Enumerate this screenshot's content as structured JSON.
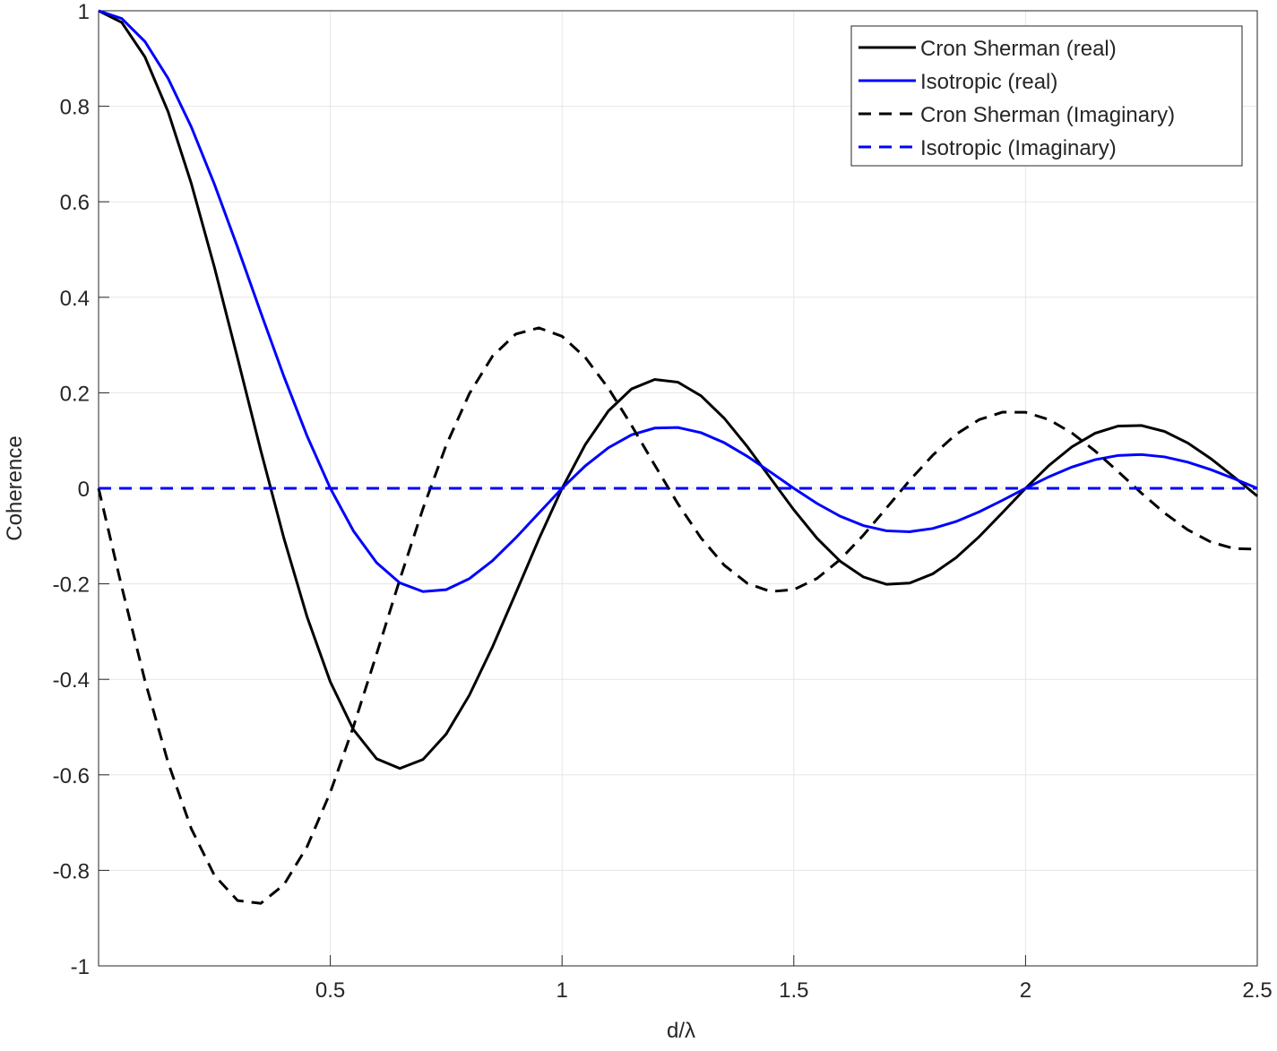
{
  "chart_data": {
    "type": "line",
    "x": [
      0,
      0.05,
      0.1,
      0.15,
      0.2,
      0.25,
      0.3,
      0.35,
      0.4,
      0.45,
      0.5,
      0.55,
      0.6,
      0.65,
      0.7,
      0.75,
      0.8,
      0.85,
      0.9,
      0.95,
      1,
      1.05,
      1.1,
      1.15,
      1.2,
      1.25,
      1.3,
      1.35,
      1.4,
      1.45,
      1.5,
      1.55,
      1.6,
      1.65,
      1.7,
      1.75,
      1.8,
      1.85,
      1.9,
      1.95,
      2,
      2.05,
      2.1,
      2.15,
      2.2,
      2.25,
      2.3,
      2.35,
      2.4,
      2.45,
      2.5
    ],
    "series": [
      {
        "name": "Cron Sherman (real)",
        "color": "#000000",
        "dash": false,
        "values": [
          1,
          0.9755,
          0.9034,
          0.7887,
          0.6385,
          0.4627,
          0.2723,
          0.0791,
          -0.105,
          -0.2695,
          -0.4053,
          -0.5056,
          -0.5664,
          -0.5866,
          -0.5678,
          -0.5145,
          -0.4331,
          -0.3319,
          -0.2198,
          -0.1063,
          0,
          0.0914,
          0.1621,
          0.2081,
          0.228,
          0.2222,
          0.1936,
          0.1466,
          0.0869,
          0.0208,
          -0.045,
          -0.1046,
          -0.1527,
          -0.1856,
          -0.201,
          -0.1984,
          -0.179,
          -0.1453,
          -0.1012,
          -0.0511,
          0,
          0.0474,
          0.0869,
          0.1153,
          0.1304,
          0.1315,
          0.1191,
          0.095,
          0.062,
          0.0237,
          -0.0162
        ]
      },
      {
        "name": "Isotropic (real)",
        "color": "#0000ff",
        "dash": false,
        "values": [
          1,
          0.9836,
          0.9355,
          0.8584,
          0.7568,
          0.6366,
          0.5046,
          0.3679,
          0.2339,
          0.1093,
          0,
          -0.0894,
          -0.1559,
          -0.1981,
          -0.2162,
          -0.2122,
          -0.1892,
          -0.1515,
          -0.1039,
          -0.0518,
          0,
          0.0468,
          0.085,
          0.112,
          0.1261,
          0.1273,
          0.1164,
          0.0954,
          0.0668,
          0.0339,
          0,
          -0.0317,
          -0.0585,
          -0.078,
          -0.089,
          -0.0909,
          -0.0841,
          -0.0696,
          -0.0492,
          -0.0252,
          0,
          0.024,
          0.0445,
          0.0599,
          0.0688,
          0.0707,
          0.0658,
          0.0548,
          0.039,
          0.0201,
          0
        ]
      },
      {
        "name": "Cron Sherman (Imaginary)",
        "color": "#000000",
        "dash": true,
        "values": [
          0,
          -0.2063,
          -0.4026,
          -0.5743,
          -0.7127,
          -0.8106,
          -0.8632,
          -0.8691,
          -0.8299,
          -0.75,
          -0.6366,
          -0.4987,
          -0.3465,
          -0.1908,
          -0.0422,
          0.0901,
          0.1982,
          0.2768,
          0.3229,
          0.336,
          0.3183,
          0.2741,
          0.2095,
          0.1317,
          0.0485,
          -0.0324,
          -0.1042,
          -0.1611,
          -0.1991,
          -0.2162,
          -0.2122,
          -0.1888,
          -0.1493,
          -0.0983,
          -0.0412,
          0.0165,
          0.0695,
          0.1131,
          0.1438,
          0.1594,
          0.1592,
          0.144,
          0.1159,
          0.0782,
          0.0348,
          -0.01,
          -0.0519,
          -0.087,
          -0.1125,
          -0.1262,
          -0.1273
        ]
      },
      {
        "name": "Isotropic (Imaginary)",
        "color": "#0000ff",
        "dash": true,
        "values": [
          0,
          0,
          0,
          0,
          0,
          0,
          0,
          0,
          0,
          0,
          0,
          0,
          0,
          0,
          0,
          0,
          0,
          0,
          0,
          0,
          0,
          0,
          0,
          0,
          0,
          0,
          0,
          0,
          0,
          0,
          0,
          0,
          0,
          0,
          0,
          0,
          0,
          0,
          0,
          0,
          0,
          0,
          0,
          0,
          0,
          0,
          0,
          0,
          0,
          0,
          0
        ]
      }
    ],
    "xlabel": "d/λ",
    "ylabel": "Coherence",
    "xlim": [
      0,
      2.5
    ],
    "ylim": [
      -1,
      1
    ],
    "xticks": [
      0.5,
      1,
      1.5,
      2,
      2.5
    ],
    "yticks": [
      -1,
      -0.8,
      -0.6,
      -0.4,
      -0.2,
      0,
      0.2,
      0.4,
      0.6,
      0.8,
      1
    ],
    "grid": true,
    "legend": "upper right"
  }
}
